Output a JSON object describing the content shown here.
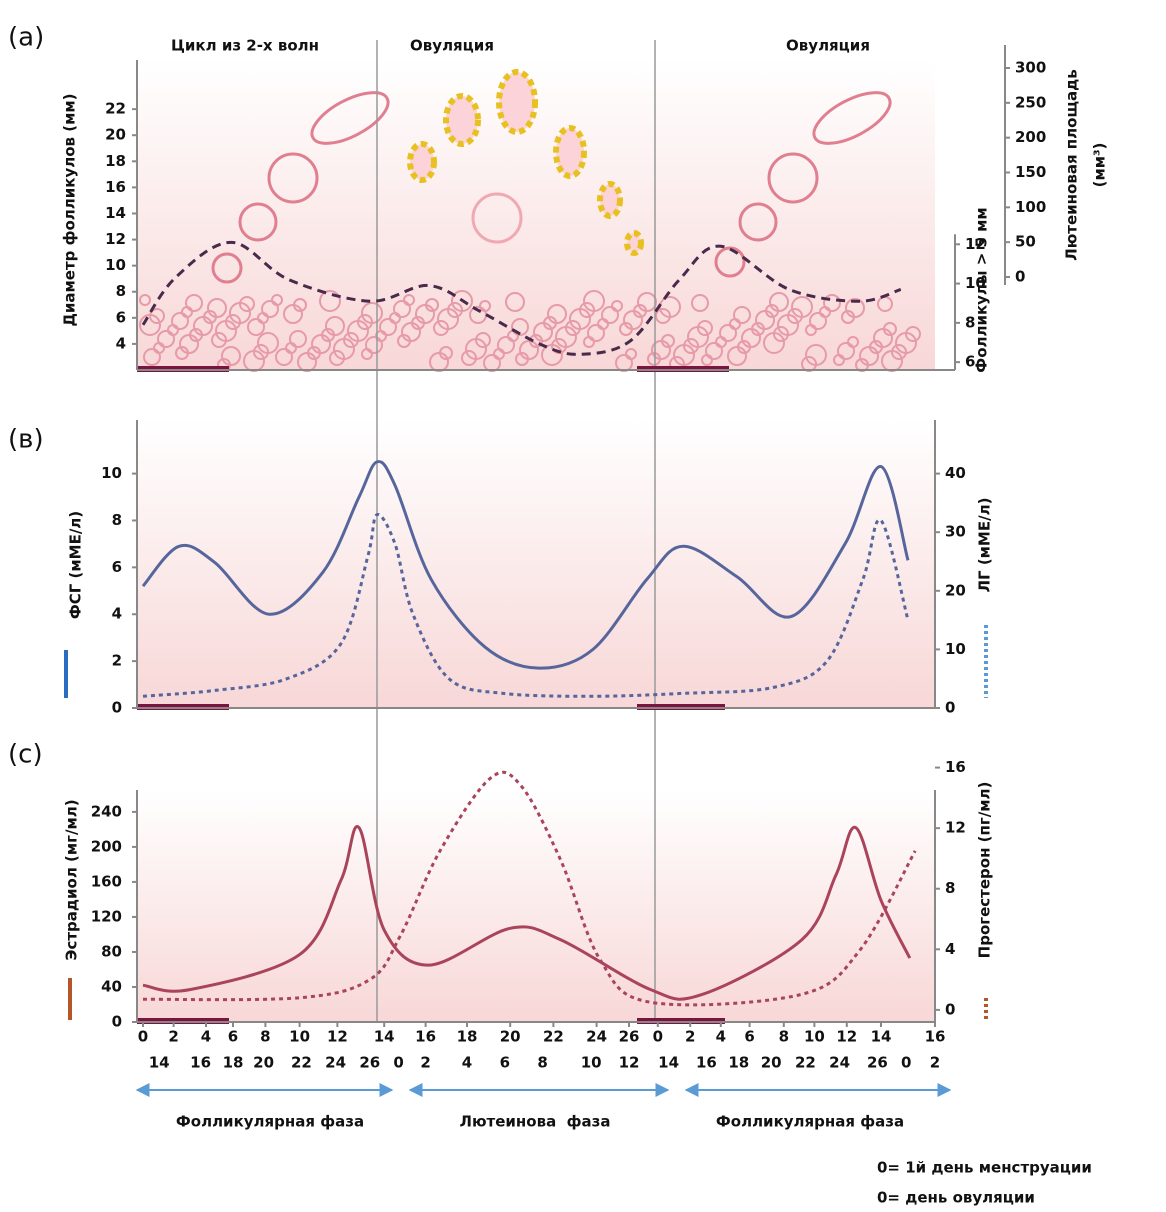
{
  "chart_data": [
    {
      "type": "line",
      "label": "(a)",
      "annotations": [
        "Цикл из 2-х волн",
        "Овуляция",
        "Овуляция"
      ],
      "ylabel": "Диаметр фолликулов (мм)",
      "ylim": [
        2,
        27.3
      ],
      "yticks": [
        4,
        6,
        8,
        10,
        12,
        14,
        16,
        18,
        20,
        22
      ],
      "y2label": "Фолликулы > 5 мм",
      "y2lim": [
        5.6,
        22.4
      ],
      "y2ticks": [
        6,
        8,
        10,
        12
      ],
      "y3label": [
        "Лютеиновая площадь",
        "(мм³)"
      ],
      "y3lim": [
        0,
        333
      ],
      "y3ticks": [
        0,
        50,
        100,
        150,
        200,
        250,
        300
      ],
      "xlim": [
        0,
        44
      ],
      "series": [
        {
          "color": "#4a2a4a",
          "style": "dashed",
          "axis": "y2",
          "x": [
            0,
            1.8,
            4.9,
            8.1,
            12.6,
            15.9,
            18.7,
            22.1,
            24.3,
            27.1,
            29.8,
            32.1,
            35.9,
            39.8,
            42.1
          ],
          "values": [
            7.9,
            10.3,
            12.1,
            10.2,
            9.1,
            9.9,
            8.6,
            6.9,
            6.4,
            7.1,
            10.2,
            11.9,
            9.7,
            9.1,
            9.7
          ]
        }
      ]
    },
    {
      "type": "line",
      "label": "(в)",
      "ylabel": "ФСГ (мМЕ/л)",
      "ylim": [
        0,
        12.5
      ],
      "yticks": [
        0,
        2,
        4,
        6,
        8,
        10
      ],
      "y2label": "ЛГ (мМЕ/л)",
      "y2lim": [
        0,
        50
      ],
      "y2ticks": [
        0,
        10,
        20,
        30,
        40
      ],
      "xlim": [
        0,
        44
      ],
      "series": [
        {
          "color": "#56669c",
          "style": "solid",
          "x": [
            0,
            2,
            4,
            7,
            10,
            12,
            13,
            14,
            16,
            19,
            22,
            25,
            28,
            30,
            33,
            36,
            39,
            41,
            42.5
          ],
          "values": [
            5.2,
            6.9,
            6.2,
            4.0,
            5.8,
            9.0,
            10.5,
            9.5,
            5.5,
            2.6,
            1.7,
            2.5,
            5.5,
            6.9,
            5.6,
            3.9,
            7.0,
            10.3,
            6.3
          ]
        },
        {
          "color": "#56669c",
          "style": "dotted",
          "axis": "y2",
          "x": [
            0,
            4,
            8,
            11,
            12.5,
            13,
            14,
            15,
            17,
            20,
            25,
            30,
            35,
            38,
            40,
            41,
            42.5
          ],
          "values": [
            2,
            3,
            5,
            11,
            26,
            33,
            28,
            16,
            5,
            2.5,
            2,
            2.5,
            3.5,
            8,
            22,
            32,
            15
          ]
        }
      ]
    },
    {
      "type": "line",
      "label": "(c)",
      "ylabel": "Эстрадиол (мг/мл)",
      "ylim": [
        0,
        265
      ],
      "yticks": [
        0,
        40,
        80,
        120,
        160,
        200,
        240
      ],
      "y2label": "Прогестерон (пг/мл)",
      "y2lim": [
        -0.8,
        16.5
      ],
      "y2ticks": [
        0,
        4,
        8,
        12,
        16
      ],
      "xlim": [
        0,
        44
      ],
      "xticks": [
        {
          "value": 0,
          "label": "0"
        },
        {
          "value": 1.7,
          "label": "2"
        },
        {
          "value": 3.5,
          "label": "4"
        },
        {
          "value": 5,
          "label": "6"
        },
        {
          "value": 6.8,
          "label": "8"
        },
        {
          "value": 8.7,
          "label": "10"
        },
        {
          "value": 10.8,
          "label": "12"
        },
        {
          "value": 13.4,
          "label": "14"
        },
        {
          "value": 15.7,
          "label": "16"
        },
        {
          "value": 18,
          "label": "18"
        },
        {
          "value": 20.4,
          "label": "20"
        },
        {
          "value": 22.8,
          "label": "22"
        },
        {
          "value": 25.2,
          "label": "24"
        },
        {
          "value": 27,
          "label": "26"
        },
        {
          "value": 28.6,
          "label": "0"
        },
        {
          "value": 30.4,
          "label": "2"
        },
        {
          "value": 32.1,
          "label": "4"
        },
        {
          "value": 33.7,
          "label": "6"
        },
        {
          "value": 35.6,
          "label": "8"
        },
        {
          "value": 37.3,
          "label": "10"
        },
        {
          "value": 39.1,
          "label": "12"
        },
        {
          "value": 41,
          "label": "14"
        },
        {
          "value": 44,
          "label": "16"
        }
      ],
      "xticks2": [
        {
          "value": 0.9,
          "label": "14"
        },
        {
          "value": 3.2,
          "label": "16"
        },
        {
          "value": 5,
          "label": "18"
        },
        {
          "value": 6.7,
          "label": "20"
        },
        {
          "value": 8.8,
          "label": "22"
        },
        {
          "value": 10.7,
          "label": "24"
        },
        {
          "value": 12.6,
          "label": "26"
        },
        {
          "value": 14.2,
          "label": "0"
        },
        {
          "value": 15.7,
          "label": "2"
        },
        {
          "value": 18,
          "label": "4"
        },
        {
          "value": 20.1,
          "label": "6"
        },
        {
          "value": 22.2,
          "label": "8"
        },
        {
          "value": 24.9,
          "label": "10"
        },
        {
          "value": 27,
          "label": "12"
        },
        {
          "value": 29.2,
          "label": "14"
        },
        {
          "value": 31.3,
          "label": "16"
        },
        {
          "value": 33.1,
          "label": "18"
        },
        {
          "value": 34.9,
          "label": "20"
        },
        {
          "value": 36.8,
          "label": "22"
        },
        {
          "value": 38.7,
          "label": "24"
        },
        {
          "value": 40.8,
          "label": "26"
        },
        {
          "value": 42.4,
          "label": "0"
        },
        {
          "value": 44,
          "label": "2"
        }
      ],
      "series": [
        {
          "color": "#a9445a",
          "style": "solid",
          "x": [
            0,
            2.6,
            8.7,
            11,
            12,
            13.4,
            15.9,
            20.4,
            23.2,
            28.2,
            31,
            36.6,
            38.5,
            39.6,
            41,
            42.6
          ],
          "values": [
            42,
            37,
            77,
            162,
            222,
            105,
            65,
            107,
            94,
            37,
            31,
            94,
            168,
            222,
            139,
            73
          ]
        },
        {
          "color": "#a9445a",
          "style": "dotted",
          "axis": "y2",
          "x": [
            0,
            8.7,
            12.6,
            14.3,
            16.5,
            19.3,
            21,
            23.2,
            25.4,
            28.2,
            36.5,
            39.8,
            42.9
          ],
          "values": [
            0.7,
            0.8,
            2,
            4.9,
            10.5,
            15.3,
            14.8,
            9.9,
            3.3,
            0.5,
            1,
            3.9,
            10.5
          ]
        }
      ]
    }
  ],
  "phases": [
    "Фолликулярная фаза",
    "Лютеинова  фаза",
    "Фолликулярная фаза"
  ],
  "notes": [
    "0= 1й день менструации",
    "0= день овуляции"
  ]
}
